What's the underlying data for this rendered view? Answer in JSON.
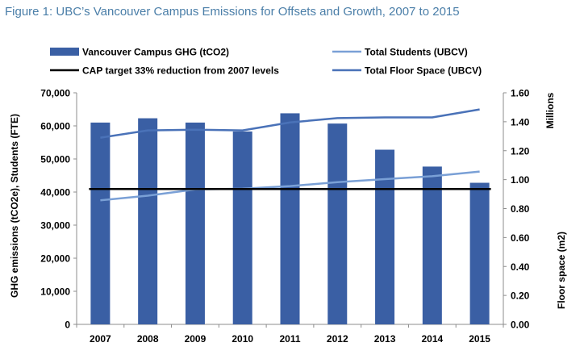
{
  "figure_title": "Figure 1: UBC’s Vancouver Campus Emissions for Offsets and Growth, 2007 to 2015",
  "colors": {
    "bar": "#3a5fa4",
    "students_line": "#7aa0d6",
    "floor_line": "#4a72b8",
    "target_line": "#000000",
    "axis": "#8c8c8c",
    "text": "#000000",
    "title": "#4a7ea8"
  },
  "chart_data": {
    "type": "bar",
    "title": "Figure 1: UBC’s Vancouver Campus Emissions for Offsets and Growth, 2007 to 2015",
    "categories": [
      "2007",
      "2008",
      "2009",
      "2010",
      "2011",
      "2012",
      "2013",
      "2014",
      "2015"
    ],
    "ylabel": "GHG emissions (tCO2e), Students (FTE)",
    "y2label": "Floor space (m2)",
    "y2unit_label": "Millions",
    "ylim": [
      0,
      70000
    ],
    "yticks": [
      "0",
      "10,000",
      "20,000",
      "30,000",
      "40,000",
      "50,000",
      "60,000",
      "70,000"
    ],
    "y2lim": [
      0,
      1.6
    ],
    "y2ticks": [
      "0.00",
      "0.20",
      "0.40",
      "0.60",
      "0.80",
      "1.00",
      "1.20",
      "1.40",
      "1.60"
    ],
    "grid": false,
    "legend_position": "top",
    "series": [
      {
        "name": "Vancouver Campus GHG (tCO2)",
        "type": "bar",
        "axis": "left",
        "values": [
          61000,
          62300,
          61000,
          58300,
          63800,
          60700,
          52800,
          47700,
          42800
        ]
      },
      {
        "name": "Total Students (UBCV)",
        "type": "line",
        "axis": "left",
        "values": [
          37500,
          38900,
          40800,
          41000,
          41800,
          43000,
          43900,
          44800,
          46200
        ]
      },
      {
        "name": "CAP target 33% reduction from 2007 levels",
        "type": "line",
        "axis": "left",
        "values": [
          40900,
          40900,
          40900,
          40900,
          40900,
          40900,
          40900,
          40900,
          40900
        ]
      },
      {
        "name": "Total Floor Space (UBCV)",
        "type": "line",
        "axis": "right",
        "values": [
          1.29,
          1.34,
          1.345,
          1.34,
          1.395,
          1.425,
          1.43,
          1.43,
          1.485
        ]
      }
    ]
  }
}
